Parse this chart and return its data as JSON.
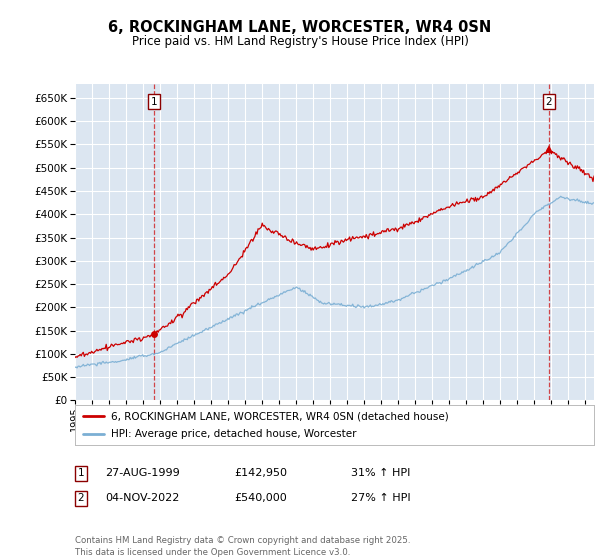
{
  "title": "6, ROCKINGHAM LANE, WORCESTER, WR4 0SN",
  "subtitle": "Price paid vs. HM Land Registry's House Price Index (HPI)",
  "ylim": [
    0,
    680000
  ],
  "yticks": [
    0,
    50000,
    100000,
    150000,
    200000,
    250000,
    300000,
    350000,
    400000,
    450000,
    500000,
    550000,
    600000,
    650000
  ],
  "bg_color": "#dce6f1",
  "grid_color": "#ffffff",
  "sale1_date": 1999.65,
  "sale1_price": 142950,
  "sale2_date": 2022.84,
  "sale2_price": 540000,
  "red_color": "#cc0000",
  "blue_color": "#7bafd4",
  "legend_label_red": "6, ROCKINGHAM LANE, WORCESTER, WR4 0SN (detached house)",
  "legend_label_blue": "HPI: Average price, detached house, Worcester",
  "footer": "Contains HM Land Registry data © Crown copyright and database right 2025.\nThis data is licensed under the Open Government Licence v3.0.",
  "xstart": 1995.0,
  "xend": 2025.5
}
